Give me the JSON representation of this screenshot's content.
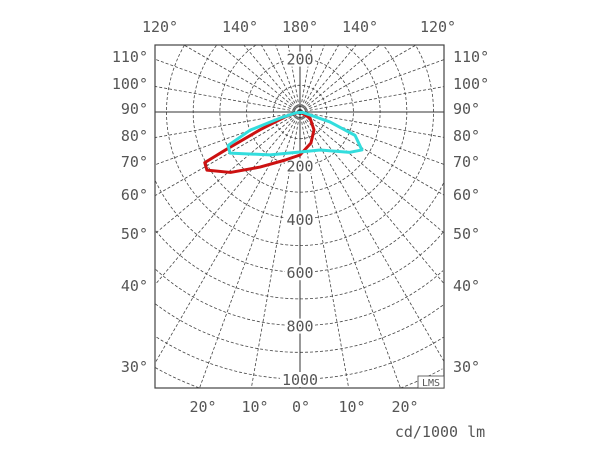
{
  "chart_data": {
    "type": "polar",
    "unit_label": "cd/1000 lm",
    "logo": "LMS",
    "radial_range": [
      0,
      1000
    ],
    "radial_grid_step": 100,
    "radial_tick_labels": [
      "200",
      "200",
      "400",
      "600",
      "800",
      "1000"
    ],
    "angular_grid_step_deg": 10,
    "angle_labels": {
      "top": [
        "120°",
        "140°",
        "180°",
        "140°",
        "120°"
      ],
      "left": [
        "110°",
        "100°",
        "90°",
        "80°",
        "70°",
        "60°",
        "50°",
        "40°",
        "30°"
      ],
      "right": [
        "110°",
        "100°",
        "90°",
        "80°",
        "70°",
        "60°",
        "50°",
        "40°",
        "30°"
      ],
      "bottom": [
        "20°",
        "10°",
        "0°",
        "10°",
        "20°"
      ]
    },
    "grid": true,
    "series": [
      {
        "color": "#cc1111",
        "points": [
          [
            0,
            0
          ],
          [
            59,
            44
          ],
          [
            38,
            85
          ],
          [
            19.5,
            123
          ],
          [
            0,
            161
          ],
          [
            -17,
            188
          ],
          [
            -36,
            255
          ],
          [
            -49,
            345
          ],
          [
            -58,
            411
          ],
          [
            -62,
            404
          ],
          [
            -63,
            315
          ],
          [
            -66,
            164
          ],
          [
            -72,
            59
          ],
          [
            0,
            0
          ]
        ]
      },
      {
        "color": "#33dddd",
        "points": [
          [
            -80,
            10
          ],
          [
            80,
            12
          ],
          [
            71.6,
            118
          ],
          [
            67,
            224
          ],
          [
            58.5,
            272
          ],
          [
            51,
            240
          ],
          [
            28,
            161
          ],
          [
            0,
            150
          ],
          [
            -35,
            196
          ],
          [
            -59.6,
            304
          ],
          [
            -65,
            297
          ],
          [
            -70,
            199
          ],
          [
            -73,
            78
          ],
          [
            -80,
            10
          ]
        ]
      }
    ]
  }
}
